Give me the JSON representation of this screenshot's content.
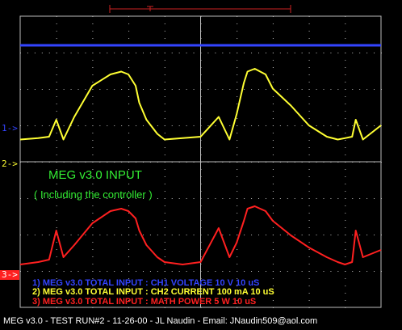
{
  "colors": {
    "ch1": "#3344ff",
    "ch2": "#ffff33",
    "ch3": "#ff2020",
    "grid": "#bbbbbb",
    "annotation": "#33ee33",
    "background": "#000000",
    "footer": "#ffffff"
  },
  "markers": {
    "ch1": "1->",
    "ch2": "2->",
    "ch3": "3->"
  },
  "annotation": {
    "line1": "MEG v3.0 INPUT",
    "line2": "( Including the controller )"
  },
  "channels": [
    {
      "label": "1) MEG v3.0 TOTAL INPUT : CH1 VOLTAGE 10  V 10 uS"
    },
    {
      "label": "2) MEG v3.0 TOTAL INPUT : CH2 CURRENT 100 mA 10 uS"
    },
    {
      "label": "3) MEG v3.0 TOTAL INPUT : MATH POWER 5  W 10 uS"
    }
  ],
  "footer": "MEG v3.0 - TEST RUN#2 - 11-26-00 - JL Naudin - Email: JNaudin509@aol.com",
  "chart_data": {
    "type": "line",
    "grid": true,
    "x": [
      0,
      0.05,
      0.08,
      0.1,
      0.12,
      0.15,
      0.2,
      0.25,
      0.28,
      0.3,
      0.32,
      0.33,
      0.35,
      0.38,
      0.4,
      0.45,
      0.5,
      0.55,
      0.58,
      0.6,
      0.62,
      0.63,
      0.65,
      0.68,
      0.7,
      0.75,
      0.8,
      0.85,
      0.88,
      0.9,
      0.92,
      0.93,
      0.95,
      1
    ],
    "series": [
      {
        "name": "1) MEG v3.0 TOTAL INPUT : CH1 VOLTAGE 10  V 10 uS",
        "values": [
          0.1,
          0.1,
          0.1,
          0.1,
          0.1,
          0.1,
          0.1,
          0.1,
          0.1,
          0.1,
          0.1,
          0.1,
          0.1,
          0.1,
          0.1,
          0.1,
          0.1,
          0.1,
          0.1,
          0.1,
          0.1,
          0.1,
          0.1,
          0.1,
          0.1,
          0.1,
          0.1,
          0.1,
          0.1,
          0.1,
          0.1,
          0.1,
          0.1,
          0.1
        ]
      },
      {
        "name": "2) MEG v3.0 TOTAL INPUT : CH2 CURRENT 100 mA 10 uS",
        "values": [
          0.5,
          0.55,
          0.6,
          1.2,
          0.5,
          1.3,
          2.4,
          2.8,
          2.9,
          2.8,
          2.4,
          1.8,
          1.2,
          0.7,
          0.5,
          0.55,
          0.6,
          1.3,
          0.5,
          1.4,
          2.5,
          2.9,
          3.0,
          2.8,
          2.3,
          1.7,
          1.0,
          0.6,
          0.5,
          0.55,
          0.6,
          1.2,
          0.5,
          1.0
        ]
      },
      {
        "name": "3) MEG v3.0 TOTAL INPUT : MATH POWER 5  W 10 uS",
        "values": [
          0.1,
          0.2,
          0.3,
          1.5,
          0.4,
          0.9,
          1.8,
          2.3,
          2.4,
          2.3,
          2.0,
          1.5,
          0.9,
          0.4,
          0.2,
          0.1,
          0.2,
          1.6,
          0.4,
          1.0,
          1.9,
          2.4,
          2.5,
          2.3,
          1.9,
          1.3,
          0.8,
          0.4,
          0.2,
          0.1,
          0.2,
          1.5,
          0.4,
          0.7
        ]
      }
    ]
  }
}
